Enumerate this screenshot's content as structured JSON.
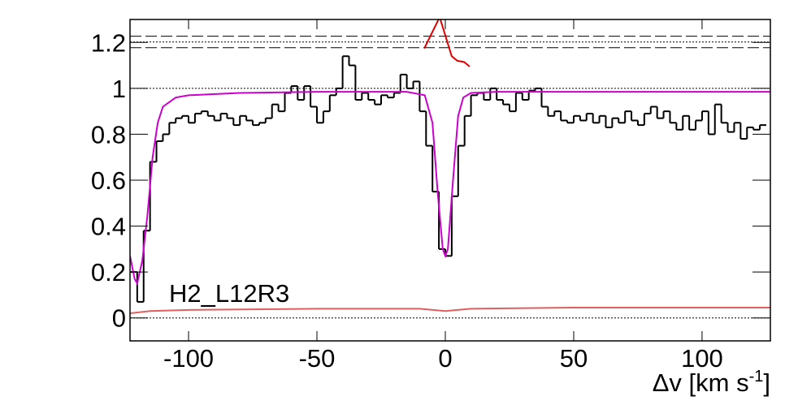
{
  "chart_data": {
    "type": "spectrum",
    "annotation": "H2_L12R3",
    "xlabel": {
      "text": "Δv [km s",
      "sup": "-1",
      "end": "]"
    },
    "xlim": [
      -122.8,
      126.6
    ],
    "ylim": [
      -0.1,
      1.3
    ],
    "xticks": [
      -100,
      -50,
      0,
      50,
      100
    ],
    "yticks": [
      0,
      0.2,
      0.4,
      0.6,
      0.8,
      1,
      1.2
    ],
    "hlines": [
      {
        "y": 0,
        "style": "dotted"
      },
      {
        "y": 1,
        "style": "dotted"
      },
      {
        "y": 1.177,
        "style": "dashed"
      },
      {
        "y": 1.202,
        "style": "dotted"
      },
      {
        "y": 1.227,
        "style": "dashed"
      }
    ],
    "histogram": {
      "color": "#000000",
      "bins": [
        -122.5,
        -120,
        -117.5,
        -115,
        -112.5,
        -110,
        -107.5,
        -105,
        -102.5,
        -100,
        -97.5,
        -95,
        -92.5,
        -90,
        -87.5,
        -85,
        -82.5,
        -80,
        -77.5,
        -75,
        -72.5,
        -70,
        -67.5,
        -65,
        -62.5,
        -60,
        -57.5,
        -55,
        -52.5,
        -50,
        -47.5,
        -45,
        -42.5,
        -40,
        -37.5,
        -35,
        -32.5,
        -30,
        -27.5,
        -25,
        -22.5,
        -20,
        -17.5,
        -15,
        -12.5,
        -10,
        -7.5,
        -5,
        -2.5,
        0,
        2.5,
        5,
        7.5,
        10,
        12.5,
        15,
        17.5,
        20,
        22.5,
        25,
        27.5,
        30,
        32.5,
        35,
        37.5,
        40,
        42.5,
        45,
        47.5,
        50,
        52.5,
        55,
        57.5,
        60,
        62.5,
        65,
        67.5,
        70,
        72.5,
        75,
        77.5,
        80,
        82.5,
        85,
        87.5,
        90,
        92.5,
        95,
        97.5,
        100,
        102.5,
        105,
        107.5,
        110,
        112.5,
        115,
        117.5,
        120,
        122.5,
        125
      ],
      "values": [
        0.2,
        0.07,
        0.38,
        0.68,
        0.77,
        0.8,
        0.85,
        0.87,
        0.88,
        0.85,
        0.89,
        0.9,
        0.88,
        0.86,
        0.89,
        0.87,
        0.84,
        0.88,
        0.86,
        0.84,
        0.85,
        0.87,
        0.93,
        0.9,
        0.98,
        1.01,
        0.95,
        1.01,
        0.92,
        0.85,
        0.9,
        0.97,
        1.0,
        1.14,
        1.1,
        0.95,
        0.98,
        0.95,
        0.93,
        0.97,
        0.96,
        0.98,
        1.06,
        1.0,
        1.03,
        0.9,
        0.75,
        0.55,
        0.3,
        0.27,
        0.53,
        0.75,
        0.88,
        0.97,
        0.98,
        0.95,
        1.0,
        0.95,
        0.93,
        0.9,
        0.98,
        0.95,
        0.99,
        1.0,
        0.92,
        0.88,
        0.9,
        0.86,
        0.85,
        0.88,
        0.86,
        0.89,
        0.85,
        0.88,
        0.83,
        0.87,
        0.85,
        0.9,
        0.86,
        0.84,
        0.89,
        0.92,
        0.87,
        0.9,
        0.85,
        0.82,
        0.88,
        0.82,
        0.86,
        0.9,
        0.8,
        0.93,
        0.85,
        0.81,
        0.85,
        0.78,
        0.83,
        0.82,
        0.84
      ]
    },
    "series": [
      {
        "color": "#cc00cc",
        "x": [
          -122.8,
          -121,
          -120,
          -118,
          -116,
          -114,
          -112,
          -110,
          -105,
          -100,
          -80,
          -50,
          -15,
          -8,
          -5,
          -3,
          -1,
          0,
          1,
          3,
          5,
          7,
          10,
          20,
          126.6
        ],
        "values": [
          0.27,
          0.17,
          0.15,
          0.25,
          0.45,
          0.7,
          0.85,
          0.92,
          0.96,
          0.97,
          0.98,
          0.985,
          0.985,
          0.97,
          0.85,
          0.55,
          0.3,
          0.27,
          0.3,
          0.6,
          0.88,
          0.96,
          0.98,
          0.985,
          0.985
        ]
      },
      {
        "color": "#e06060",
        "x": [
          -122.8,
          -115,
          -100,
          -50,
          -10,
          0,
          10,
          50,
          126.6
        ],
        "values": [
          0.02,
          0.03,
          0.035,
          0.04,
          0.04,
          0.03,
          0.04,
          0.045,
          0.045
        ]
      },
      {
        "color": "#e00000",
        "x": [
          -8.2,
          -2.2,
          2.5,
          4.7,
          7.3,
          9.5
        ],
        "values": [
          1.174,
          1.31,
          1.14,
          1.12,
          1.115,
          1.095
        ]
      }
    ]
  }
}
